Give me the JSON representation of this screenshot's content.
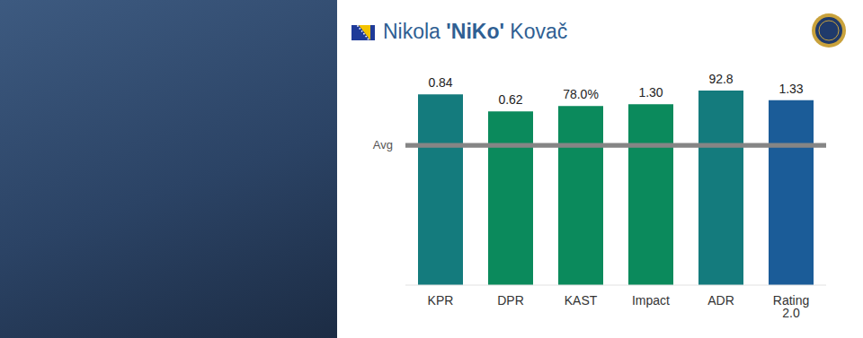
{
  "chart_data": {
    "type": "bar",
    "title": "Nikola 'NiKo' Kovač",
    "categories": [
      "KPR",
      "DPR",
      "KAST",
      "Impact",
      "ADR",
      "Rating 2.0"
    ],
    "values": [
      0.84,
      0.62,
      78.0,
      1.3,
      92.8,
      1.33
    ],
    "value_labels": [
      "0.84",
      "0.62",
      "78.0%",
      "1.30",
      "92.8",
      "1.33"
    ],
    "colors": [
      "#147b7d",
      "#0b8a5c",
      "#0b8a5c",
      "#0b8a5c",
      "#147b7d",
      "#1b5c98"
    ],
    "ylims": [
      [
        0,
        0.9
      ],
      [
        0,
        0.73
      ],
      [
        0,
        89
      ],
      [
        0,
        1.47
      ],
      [
        0,
        97.5
      ],
      [
        0,
        1.47
      ]
    ],
    "reference_line": {
      "label": "Avg",
      "values": [
        0.62,
        0.5,
        61,
        1.0,
        66.7,
        1.0
      ]
    },
    "data_labels": true,
    "tick_labels": "x"
  }
}
